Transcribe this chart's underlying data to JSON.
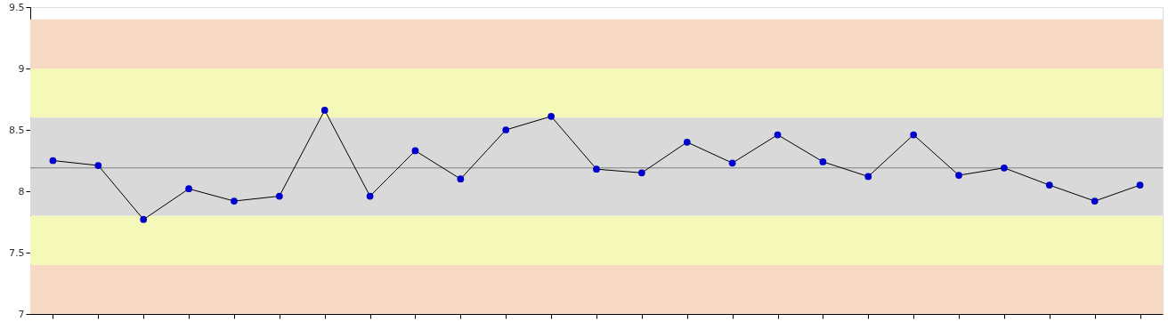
{
  "chart_data": {
    "type": "line",
    "categories": [
      null,
      null,
      null,
      null,
      null,
      null,
      null,
      null,
      null,
      null,
      null,
      null,
      null,
      null,
      null,
      null,
      null,
      null,
      null,
      null,
      null,
      null,
      null,
      null,
      null
    ],
    "series": [
      {
        "color": "#0000cc",
        "values": [
          8.25,
          8.21,
          7.77,
          8.02,
          7.92,
          7.96,
          8.66,
          7.96,
          8.33,
          8.1,
          8.5,
          8.61,
          8.18,
          8.15,
          8.4,
          8.23,
          8.46,
          8.24,
          8.12,
          8.46,
          8.13,
          8.19,
          8.05,
          7.92,
          8.05
        ]
      }
    ],
    "ylim": [
      7,
      9.5
    ],
    "yticks": [
      7,
      7.5,
      8,
      8.5,
      9,
      9.5
    ],
    "tick_labels": "y",
    "marker": "circle",
    "line_style": "solid",
    "ref_lines": [
      {
        "axis": "y",
        "value": 8.19,
        "color": "#808080"
      }
    ],
    "bands": [
      {
        "axis": "y",
        "from": 7.0,
        "to": 7.4,
        "color": "#f8d9c4"
      },
      {
        "axis": "y",
        "from": 7.4,
        "to": 7.8,
        "color": "#f4f8b8"
      },
      {
        "axis": "y",
        "from": 7.8,
        "to": 8.6,
        "color": "#d9d9d9"
      },
      {
        "axis": "y",
        "from": 8.6,
        "to": 9.0,
        "color": "#f4f8b8"
      },
      {
        "axis": "y",
        "from": 9.0,
        "to": 9.4,
        "color": "#f8d9c4"
      }
    ]
  }
}
